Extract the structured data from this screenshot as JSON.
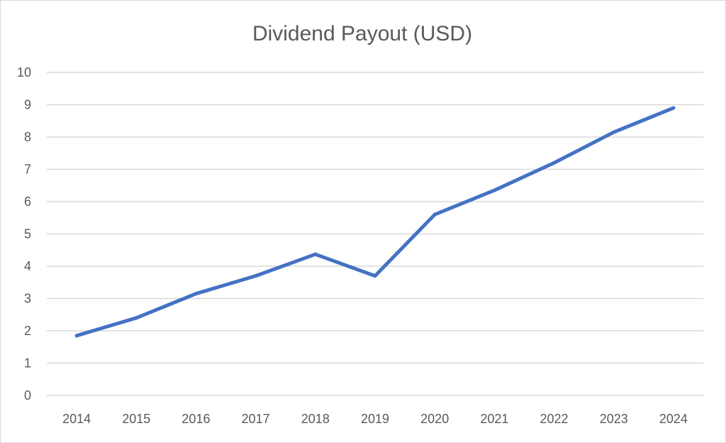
{
  "chart_data": {
    "type": "line",
    "title": "Dividend Payout (USD)",
    "xlabel": "",
    "ylabel": "",
    "categories": [
      "2014",
      "2015",
      "2016",
      "2017",
      "2018",
      "2019",
      "2020",
      "2021",
      "2022",
      "2023",
      "2024"
    ],
    "series": [
      {
        "values": [
          1.85,
          2.4,
          3.15,
          3.7,
          4.37,
          3.7,
          5.6,
          6.35,
          7.2,
          8.15,
          8.9
        ]
      }
    ],
    "ylim": [
      0,
      10
    ],
    "yticks": [
      "0",
      "1",
      "2",
      "3",
      "4",
      "5",
      "6",
      "7",
      "8",
      "9",
      "10"
    ],
    "grid": true,
    "legend": "none",
    "colors": {
      "line": "#4472C4",
      "grid": "#d9d9d9",
      "text": "#595959"
    }
  }
}
